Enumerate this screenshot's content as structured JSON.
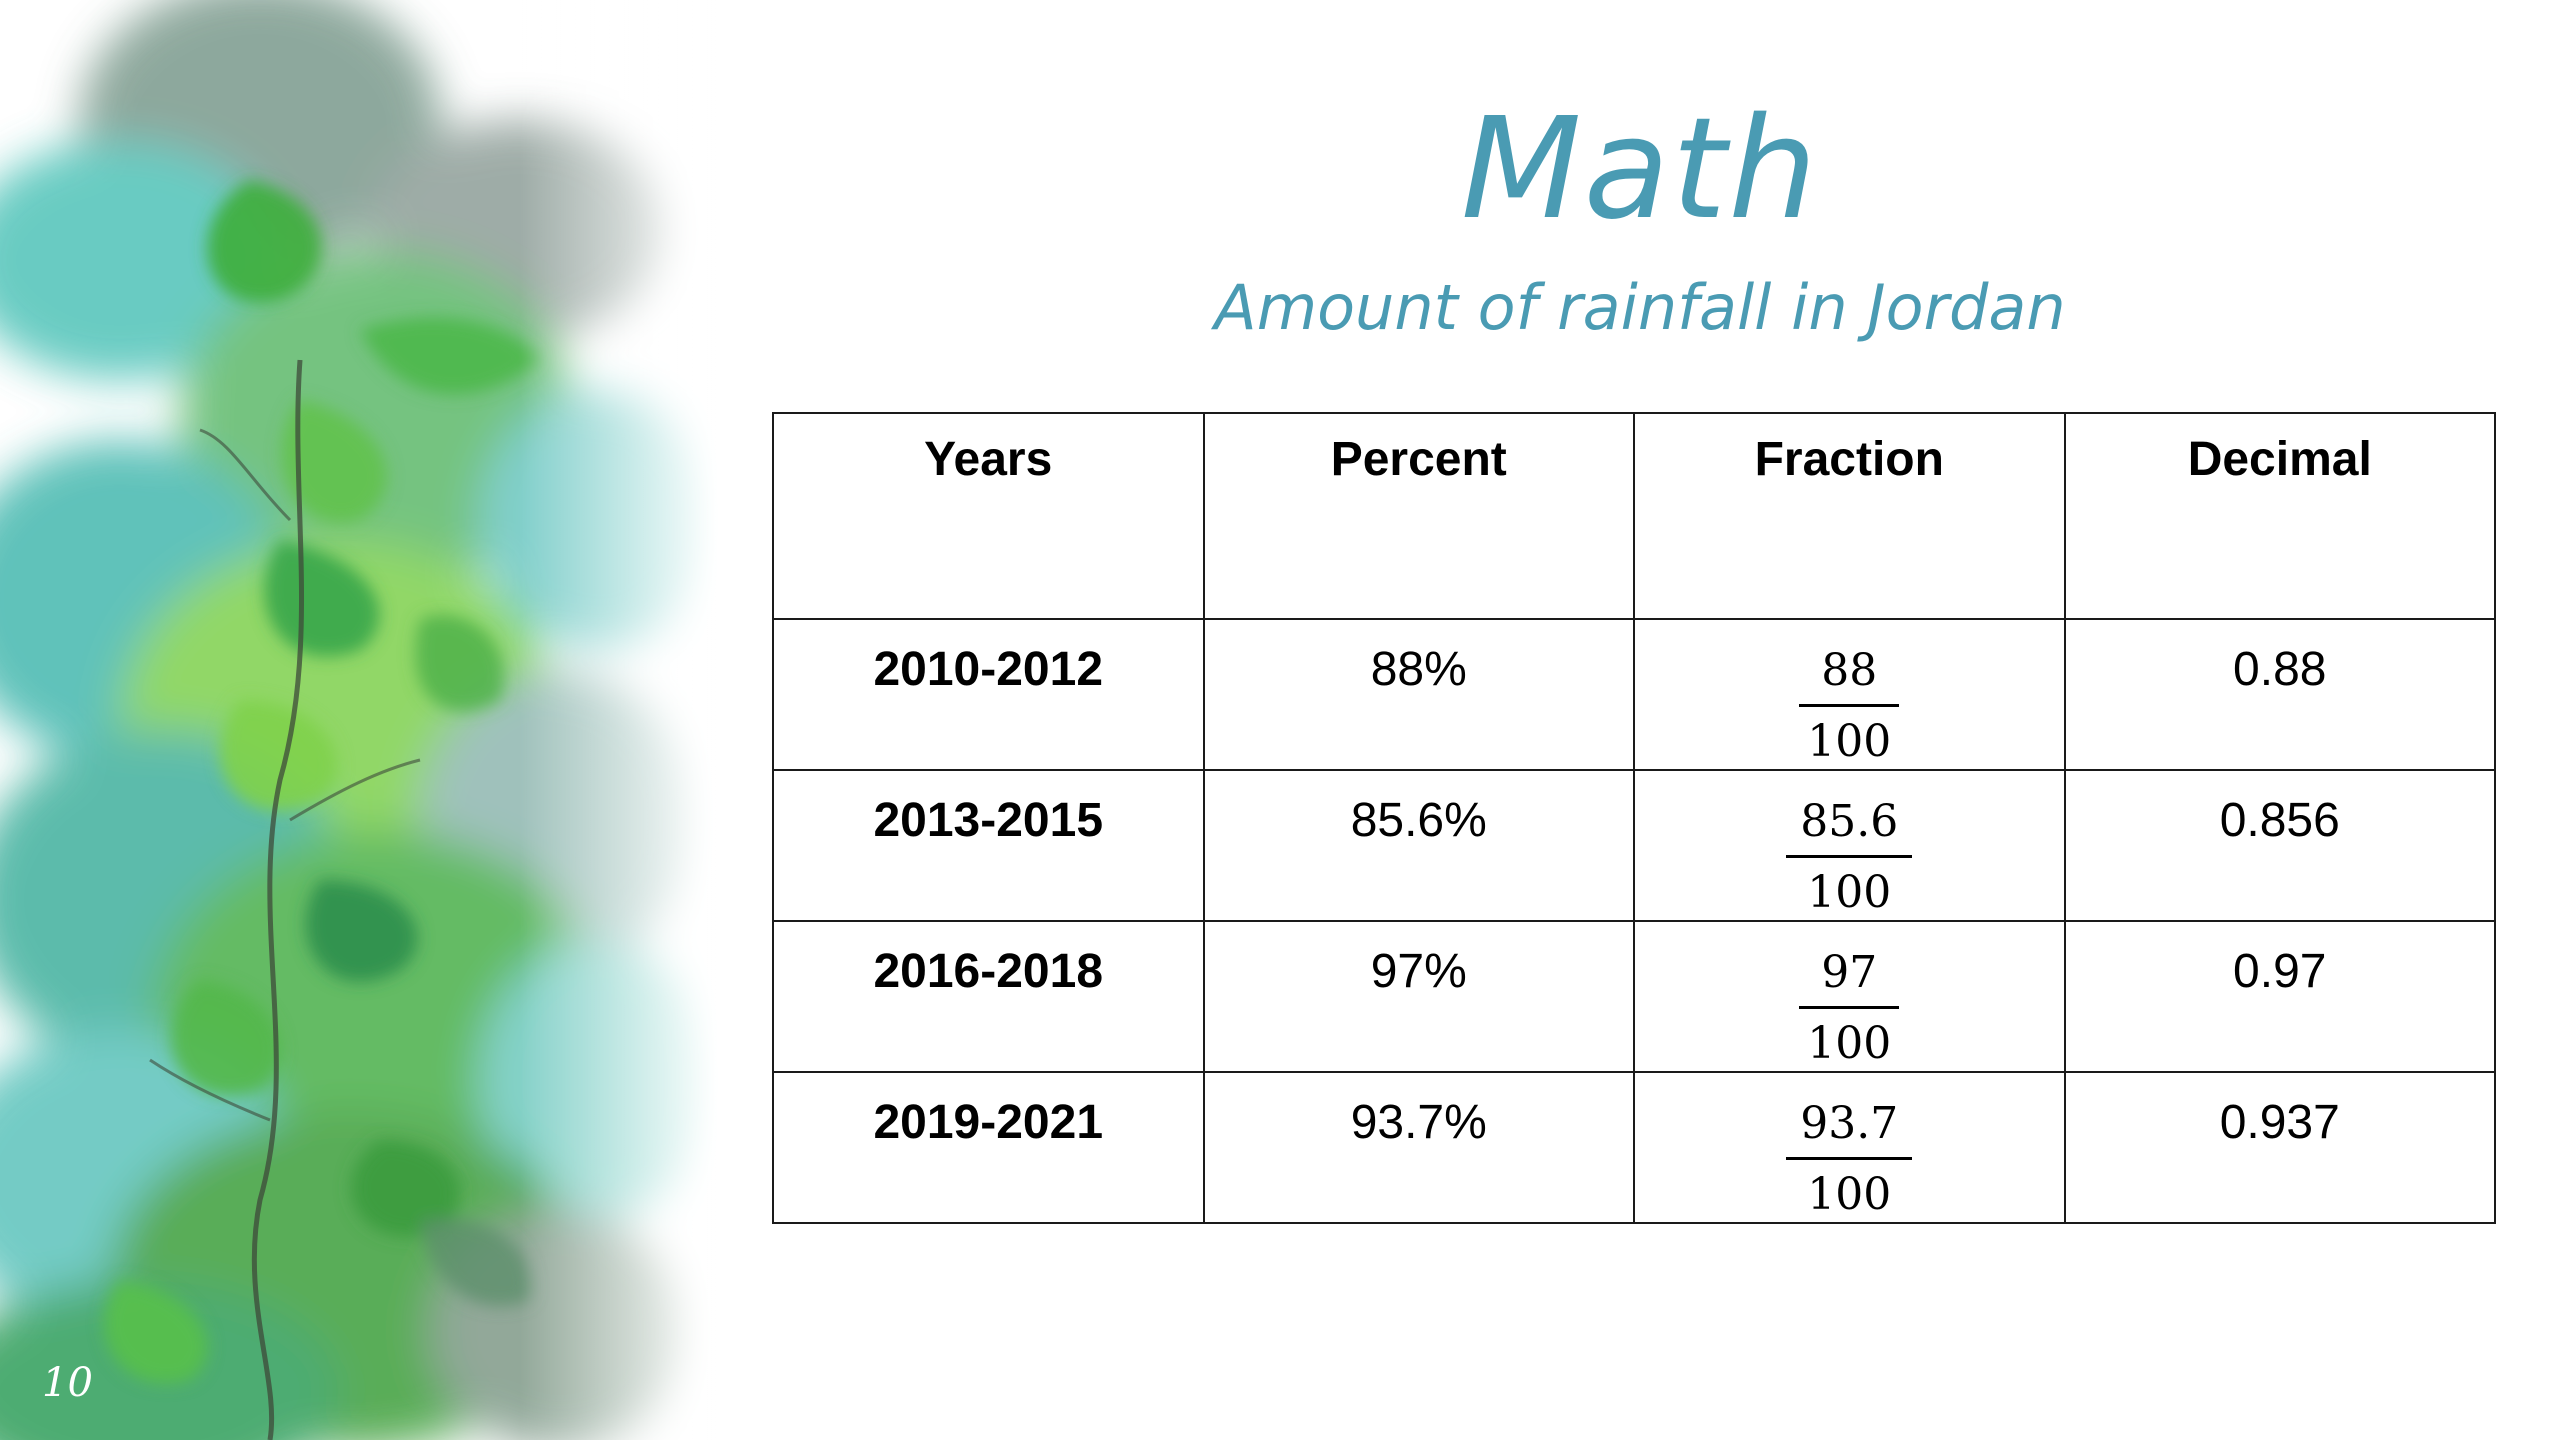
{
  "slide": {
    "number": "10",
    "title": "Math",
    "subtitle": "Amount of rainfall in Jordan"
  },
  "table": {
    "headers": [
      "Years",
      "Percent",
      "Fraction",
      "Decimal"
    ],
    "rows": [
      {
        "years": "2010-2012",
        "percent": "88%",
        "numerator": "88",
        "denominator": "100",
        "decimal": "0.88"
      },
      {
        "years": "2013-2015",
        "percent": "85.6%",
        "numerator": "85.6",
        "denominator": "100",
        "decimal": "0.856"
      },
      {
        "years": "2016-2018",
        "percent": "97%",
        "numerator": "97",
        "denominator": "100",
        "decimal": "0.97"
      },
      {
        "years": "2019-2021",
        "percent": "93.7%",
        "numerator": "93.7",
        "denominator": "100",
        "decimal": "0.937"
      }
    ]
  },
  "colors": {
    "title": "#4a9bb3",
    "leaf_green": "#3cae3f",
    "teal_wash": "#5cc6c0"
  },
  "decoration": "watercolor-leaves-image"
}
